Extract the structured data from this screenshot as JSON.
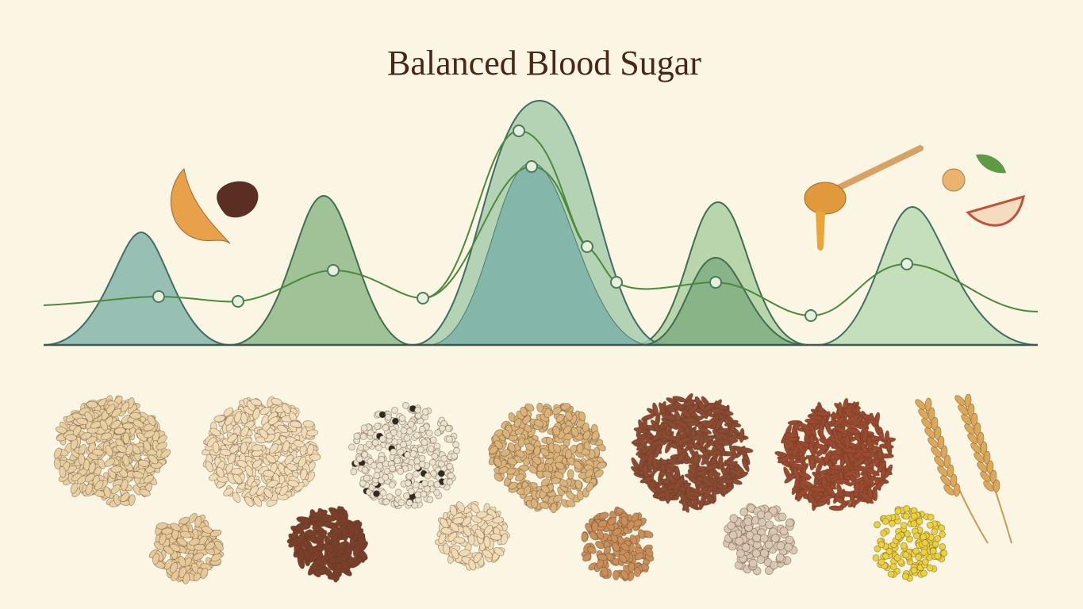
{
  "header": {
    "title": "Balanced Blood Sugar"
  }
}
